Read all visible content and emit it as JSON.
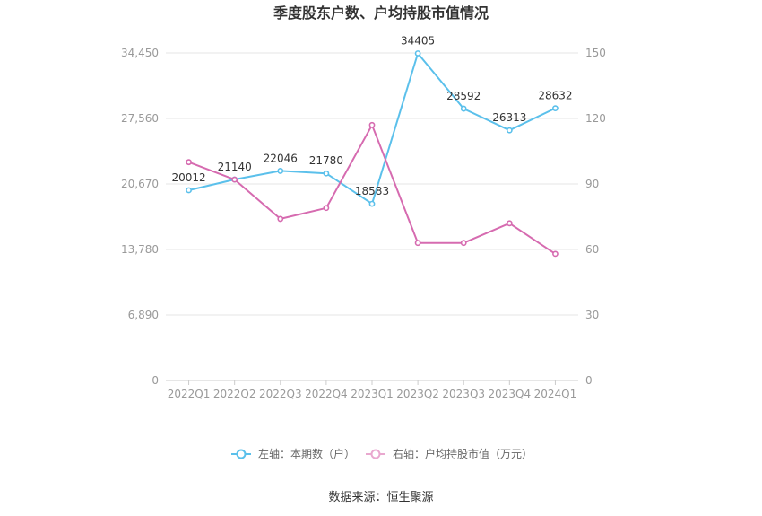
{
  "chart_data": {
    "type": "line",
    "title": "季度股东户数、户均持股市值情况",
    "categories": [
      "2022Q1",
      "2022Q2",
      "2022Q3",
      "2022Q4",
      "2023Q1",
      "2023Q2",
      "2023Q3",
      "2023Q4",
      "2024Q1"
    ],
    "y_left": {
      "ticks": [
        "0",
        "6,890",
        "13,780",
        "20,670",
        "27,560",
        "34,450"
      ],
      "range": [
        0,
        34450
      ]
    },
    "y_right": {
      "ticks": [
        "0",
        "30",
        "60",
        "90",
        "120",
        "150"
      ],
      "range": [
        0,
        150
      ]
    },
    "series": [
      {
        "name": "左轴：本期数（户）",
        "axis": "left",
        "color": "#5bc0eb",
        "values": [
          20012,
          21140,
          22046,
          21780,
          18583,
          34405,
          28592,
          26313,
          28632
        ],
        "labels": [
          "20012",
          "21140",
          "22046",
          "21780",
          "18583",
          "34405",
          "28592",
          "26313",
          "28632"
        ]
      },
      {
        "name": "右轴：户均持股市值（万元）",
        "axis": "right",
        "color": "#d66bb0",
        "values": [
          100,
          92,
          74,
          79,
          117,
          63,
          63,
          72,
          58
        ]
      }
    ],
    "legend_position": "bottom",
    "grid": true
  },
  "source": "数据来源：恒生聚源"
}
